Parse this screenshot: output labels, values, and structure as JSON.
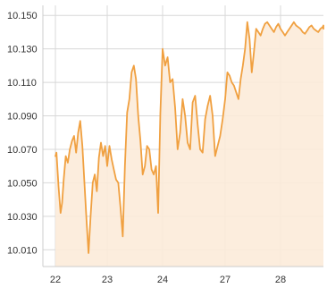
{
  "chart_data": {
    "type": "area",
    "title": "",
    "xlabel": "",
    "ylabel": "",
    "ylim": [
      10.0,
      10.156
    ],
    "grid": true,
    "legend": "none",
    "y_ticks": [
      10.15,
      10.13,
      10.11,
      10.09,
      10.07,
      10.05,
      10.03,
      10.01
    ],
    "y_tick_labels": [
      "10.150",
      "10.130",
      "10.110",
      "10.090",
      "10.070",
      "10.050",
      "10.030",
      "10.010"
    ],
    "x_ticks": [
      0,
      1,
      2,
      3,
      4
    ],
    "x_tick_labels": [
      "22",
      "23",
      "24",
      "27",
      "28"
    ],
    "x_range": [
      0,
      4.9
    ],
    "series": [
      {
        "line_color": "#f0a040",
        "fill_color": "#fcebd9",
        "x": [
          0,
          0.02,
          0.06,
          0.1,
          0.13,
          0.16,
          0.2,
          0.24,
          0.28,
          0.32,
          0.36,
          0.4,
          0.44,
          0.48,
          0.52,
          0.56,
          0.6,
          0.64,
          0.68,
          0.72,
          0.76,
          0.8,
          0.84,
          0.88,
          0.92,
          0.96,
          1.0,
          1.04,
          1.08,
          1.12,
          1.16,
          1.2,
          1.24,
          1.28,
          1.32,
          1.36,
          1.4,
          1.44,
          1.48,
          1.52,
          1.56,
          1.6,
          1.64,
          1.68,
          1.72,
          1.76,
          1.8,
          1.84,
          1.88,
          1.92,
          1.96,
          2.0,
          2.04,
          2.08,
          2.12,
          2.16,
          2.2,
          2.24,
          2.28,
          2.32,
          2.36,
          2.4,
          2.44,
          2.48,
          2.52,
          2.56,
          2.6,
          2.64,
          2.68,
          2.72,
          2.76,
          2.8,
          2.84,
          2.88,
          2.92,
          2.96,
          3.0,
          3.04,
          3.08,
          3.12,
          3.16,
          3.2,
          3.24,
          3.28,
          3.32,
          3.36,
          3.4,
          3.44,
          3.48,
          3.52,
          3.56,
          3.6,
          3.64,
          3.68,
          3.72,
          3.76,
          3.8,
          3.84,
          3.88,
          3.92,
          3.96,
          4.0,
          4.04,
          4.08,
          4.12,
          4.16,
          4.2,
          4.24,
          4.28,
          4.32,
          4.36,
          4.4,
          4.44,
          4.48,
          4.52,
          4.56,
          4.6,
          4.64,
          4.68,
          4.72,
          4.76,
          4.8,
          4.84,
          4.88,
          4.9
        ],
        "values": [
          10.066,
          10.068,
          10.048,
          10.032,
          10.038,
          10.052,
          10.066,
          10.062,
          10.07,
          10.075,
          10.078,
          10.068,
          10.08,
          10.087,
          10.072,
          10.05,
          10.028,
          10.008,
          10.03,
          10.05,
          10.055,
          10.045,
          10.065,
          10.074,
          10.066,
          10.072,
          10.06,
          10.072,
          10.064,
          10.058,
          10.052,
          10.05,
          10.035,
          10.018,
          10.06,
          10.092,
          10.1,
          10.116,
          10.12,
          10.112,
          10.09,
          10.075,
          10.055,
          10.06,
          10.072,
          10.07,
          10.058,
          10.055,
          10.06,
          10.032,
          10.092,
          10.13,
          10.12,
          10.125,
          10.11,
          10.112,
          10.095,
          10.07,
          10.08,
          10.1,
          10.09,
          10.074,
          10.07,
          10.098,
          10.102,
          10.085,
          10.07,
          10.068,
          10.088,
          10.096,
          10.102,
          10.09,
          10.066,
          10.072,
          10.078,
          10.088,
          10.1,
          10.116,
          10.114,
          10.11,
          10.108,
          10.104,
          10.1,
          10.112,
          10.12,
          10.13,
          10.146,
          10.136,
          10.116,
          10.128,
          10.142,
          10.14,
          10.138,
          10.142,
          10.145,
          10.146,
          10.144,
          10.142,
          10.14,
          10.143,
          10.145,
          10.142,
          10.14,
          10.138,
          10.14,
          10.142,
          10.144,
          10.146,
          10.144,
          10.143,
          10.142,
          10.14,
          10.139,
          10.141,
          10.143,
          10.144,
          10.142,
          10.141,
          10.14,
          10.142,
          10.143,
          10.144,
          10.142,
          10.143,
          10.144
        ]
      }
    ]
  }
}
